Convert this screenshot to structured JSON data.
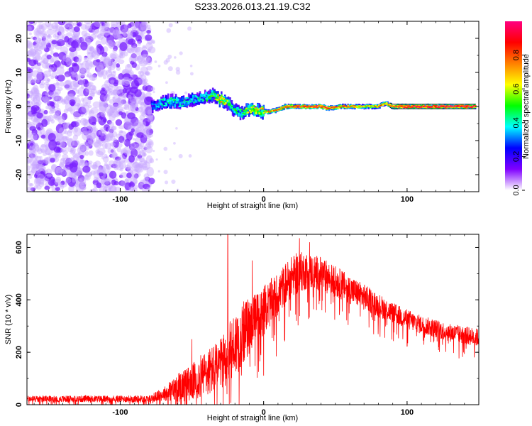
{
  "title": "S233.2026.013.21.19.C32",
  "chart_data": [
    {
      "type": "heatmap",
      "name": "spectrogram",
      "xlabel": "Height of straight line (km)",
      "ylabel": "Frequency (Hz)",
      "xlim": [
        -165,
        150
      ],
      "ylim": [
        -25,
        25
      ],
      "xticks": [
        -100,
        0,
        100
      ],
      "xtick_labels": [
        "-100",
        "0",
        "100"
      ],
      "yticks": [
        -20,
        -10,
        0,
        10,
        20
      ],
      "ytick_labels": [
        "-20",
        "-10",
        "0",
        "10",
        "20"
      ],
      "noise_region": {
        "x_from": -165,
        "x_to": -78,
        "freq_from": -25,
        "freq_to": 25,
        "amplitude_range": [
          0.0,
          0.25
        ]
      },
      "ridge": [
        {
          "x": -78,
          "freq": 0.0,
          "amp": 0.3
        },
        {
          "x": -72,
          "freq": 1.0,
          "amp": 0.4
        },
        {
          "x": -65,
          "freq": 1.5,
          "amp": 0.45
        },
        {
          "x": -58,
          "freq": 1.0,
          "amp": 0.4
        },
        {
          "x": -50,
          "freq": 2.0,
          "amp": 0.4
        },
        {
          "x": -42,
          "freq": 2.5,
          "amp": 0.42
        },
        {
          "x": -35,
          "freq": 3.5,
          "amp": 0.5
        },
        {
          "x": -30,
          "freq": 2.0,
          "amp": 0.7
        },
        {
          "x": -25,
          "freq": 1.0,
          "amp": 0.55
        },
        {
          "x": -20,
          "freq": -1.0,
          "amp": 0.45
        },
        {
          "x": -15,
          "freq": -2.0,
          "amp": 0.5
        },
        {
          "x": -10,
          "freq": -0.5,
          "amp": 0.6
        },
        {
          "x": -5,
          "freq": -1.0,
          "amp": 0.65
        },
        {
          "x": 0,
          "freq": -1.5,
          "amp": 0.7
        },
        {
          "x": 5,
          "freq": -1.5,
          "amp": 0.75
        },
        {
          "x": 10,
          "freq": -1.0,
          "amp": 0.75
        },
        {
          "x": 15,
          "freq": 0.0,
          "amp": 0.8
        },
        {
          "x": 20,
          "freq": 0.0,
          "amp": 0.85
        },
        {
          "x": 30,
          "freq": 0.0,
          "amp": 0.88
        },
        {
          "x": 40,
          "freq": 0.0,
          "amp": 0.9
        },
        {
          "x": 45,
          "freq": -0.5,
          "amp": 0.85
        },
        {
          "x": 55,
          "freq": 0.0,
          "amp": 0.8
        },
        {
          "x": 65,
          "freq": 0.0,
          "amp": 0.72
        },
        {
          "x": 75,
          "freq": 0.0,
          "amp": 0.65
        },
        {
          "x": 80,
          "freq": 0.0,
          "amp": 0.8
        },
        {
          "x": 85,
          "freq": 1.0,
          "amp": 0.7
        },
        {
          "x": 90,
          "freq": 0.0,
          "amp": 0.85
        },
        {
          "x": 100,
          "freq": 0.0,
          "amp": 0.92
        },
        {
          "x": 110,
          "freq": 0.0,
          "amp": 0.95
        },
        {
          "x": 120,
          "freq": 0.0,
          "amp": 0.95
        },
        {
          "x": 130,
          "freq": 0.0,
          "amp": 0.95
        },
        {
          "x": 140,
          "freq": 0.0,
          "amp": 0.95
        },
        {
          "x": 148,
          "freq": 0.0,
          "amp": 0.95
        }
      ],
      "colorbar": {
        "label": "Normalized spectral amplitude",
        "range": [
          0.0,
          1.0
        ],
        "ticks": [
          0.0,
          0.2,
          0.4,
          0.6,
          0.8
        ],
        "tick_labels": [
          "0.0",
          "0.2",
          "0.4",
          "0.6",
          "0.8"
        ],
        "colors": [
          "#ffffff",
          "#8000ff",
          "#0000ff",
          "#00ffff",
          "#00ff00",
          "#ffff00",
          "#ff8000",
          "#ff0000",
          "#ff0080"
        ]
      }
    },
    {
      "type": "line",
      "name": "snr",
      "xlabel": "Height of straight line (km)",
      "ylabel": "SNR (10 * v/v)",
      "xlim": [
        -165,
        150
      ],
      "ylim": [
        0,
        650
      ],
      "xticks": [
        -100,
        0,
        100
      ],
      "xtick_labels": [
        "-100",
        "0",
        "100"
      ],
      "yticks": [
        0,
        200,
        400,
        600
      ],
      "ytick_labels": [
        "0",
        "200",
        "400",
        "600"
      ],
      "line_color": "#ff0000",
      "envelope": {
        "x": [
          -165,
          -80,
          -70,
          -60,
          -50,
          -40,
          -30,
          -25,
          -20,
          -15,
          -10,
          -5,
          0,
          5,
          10,
          15,
          20,
          25,
          30,
          40,
          50,
          60,
          70,
          80,
          90,
          100,
          110,
          120,
          130,
          140,
          150
        ],
        "mean": [
          22,
          22,
          40,
          65,
          85,
          120,
          150,
          190,
          230,
          270,
          300,
          330,
          360,
          390,
          420,
          460,
          490,
          505,
          510,
          500,
          470,
          440,
          410,
          380,
          350,
          325,
          305,
          290,
          275,
          265,
          255
        ],
        "spread": [
          12,
          14,
          25,
          55,
          70,
          90,
          100,
          110,
          130,
          120,
          110,
          100,
          95,
          90,
          85,
          80,
          80,
          80,
          70,
          65,
          60,
          55,
          50,
          45,
          40,
          40,
          35,
          35,
          35,
          35,
          35
        ]
      },
      "spikes": [
        {
          "x": -50,
          "y": 250
        },
        {
          "x": -25,
          "y": 648
        },
        {
          "x": -8,
          "y": 550
        },
        {
          "x": 25,
          "y": 635
        },
        {
          "x": 32,
          "y": 620
        }
      ]
    }
  ]
}
